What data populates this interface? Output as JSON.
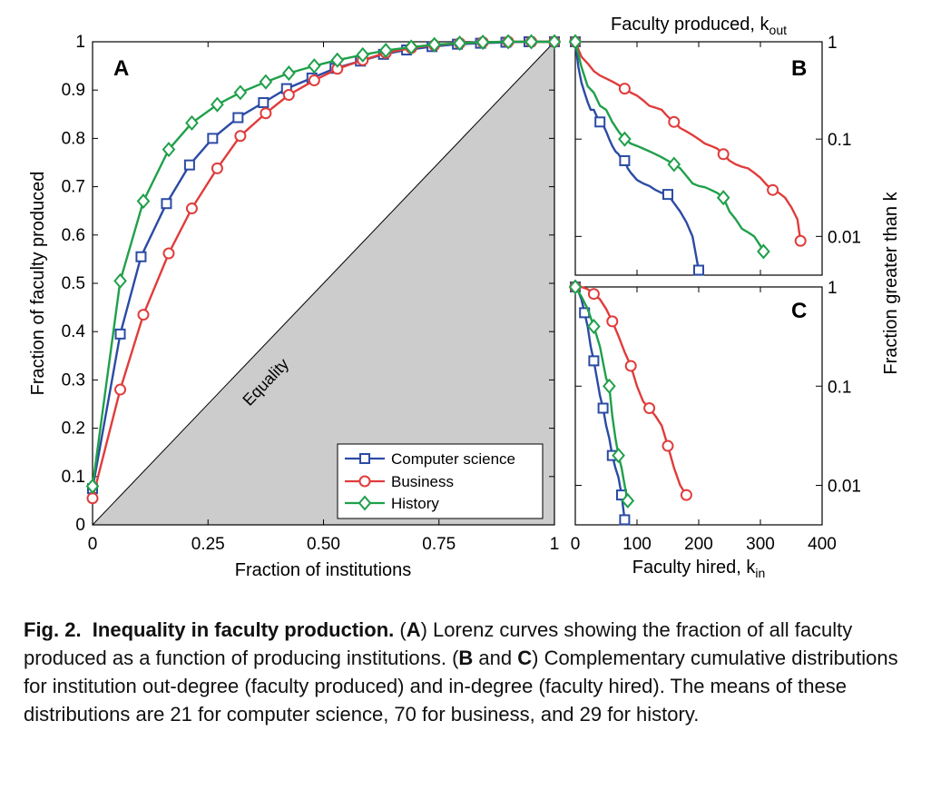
{
  "chart_data": [
    {
      "panel": "A",
      "type": "line",
      "xlabel": "Fraction of institutions",
      "ylabel": "Fraction of faculty produced",
      "xlim": [
        0,
        1
      ],
      "ylim": [
        0,
        1
      ],
      "xticks": [
        "0",
        "0.25",
        "0.50",
        "0.75",
        "1"
      ],
      "yticks": [
        "0",
        "0.1",
        "0.2",
        "0.3",
        "0.4",
        "0.5",
        "0.6",
        "0.7",
        "0.8",
        "0.9",
        "1"
      ],
      "equality_label": "Equality",
      "legend_position": "bottom-right",
      "series": [
        {
          "name": "Computer science",
          "color": "#2b4ba4",
          "marker": "square",
          "x": [
            0,
            0.06,
            0.105,
            0.16,
            0.21,
            0.26,
            0.315,
            0.37,
            0.42,
            0.475,
            0.525,
            0.58,
            0.63,
            0.68,
            0.735,
            0.79,
            0.84,
            0.895,
            0.945,
            1
          ],
          "y": [
            0.075,
            0.395,
            0.555,
            0.665,
            0.745,
            0.8,
            0.843,
            0.874,
            0.903,
            0.925,
            0.945,
            0.96,
            0.974,
            0.983,
            0.99,
            0.995,
            0.997,
            0.999,
            1.0,
            1.0
          ]
        },
        {
          "name": "Business",
          "color": "#e03c3c",
          "marker": "circle",
          "x": [
            0,
            0.06,
            0.11,
            0.165,
            0.215,
            0.27,
            0.32,
            0.375,
            0.425,
            0.48,
            0.53,
            0.585,
            0.635,
            0.69,
            0.74,
            0.795,
            0.845,
            0.9,
            0.95,
            1
          ],
          "y": [
            0.055,
            0.28,
            0.435,
            0.562,
            0.655,
            0.738,
            0.805,
            0.852,
            0.89,
            0.92,
            0.944,
            0.962,
            0.977,
            0.987,
            0.993,
            0.997,
            0.999,
            1.0,
            1.0,
            1.0
          ]
        },
        {
          "name": "History",
          "color": "#1fa04a",
          "marker": "diamond",
          "x": [
            0,
            0.06,
            0.11,
            0.165,
            0.215,
            0.27,
            0.32,
            0.375,
            0.425,
            0.48,
            0.53,
            0.585,
            0.635,
            0.69,
            0.74,
            0.795,
            0.845,
            0.9,
            0.95,
            1
          ],
          "y": [
            0.08,
            0.505,
            0.67,
            0.777,
            0.832,
            0.87,
            0.895,
            0.917,
            0.935,
            0.95,
            0.962,
            0.973,
            0.982,
            0.989,
            0.994,
            0.997,
            0.999,
            1.0,
            1.0,
            1.0
          ]
        }
      ]
    },
    {
      "panel": "B",
      "type": "line",
      "xlabel": "Faculty produced, k",
      "xlabel_subscript": "out",
      "ylabel": "Fraction greater than k",
      "xlim": [
        0,
        400
      ],
      "ylim": [
        0.004,
        1
      ],
      "yscale": "log",
      "yticks": [
        "1",
        "0.1",
        "0.01"
      ],
      "series": [
        {
          "name": "Computer science",
          "color": "#2b4ba4",
          "marker": "square",
          "x": [
            0,
            5,
            10,
            15,
            20,
            25,
            30,
            35,
            40,
            45,
            50,
            55,
            60,
            65,
            70,
            75,
            80,
            85,
            90,
            100,
            110,
            120,
            130,
            140,
            150,
            160,
            170,
            180,
            190,
            200
          ],
          "y": [
            1,
            0.55,
            0.38,
            0.3,
            0.24,
            0.2,
            0.2,
            0.17,
            0.15,
            0.14,
            0.12,
            0.1,
            0.085,
            0.075,
            0.07,
            0.062,
            0.06,
            0.05,
            0.045,
            0.038,
            0.035,
            0.033,
            0.03,
            0.028,
            0.027,
            0.022,
            0.018,
            0.014,
            0.01,
            0.0045
          ]
        },
        {
          "name": "Business",
          "color": "#e03c3c",
          "marker": "circle",
          "x": [
            0,
            10,
            20,
            30,
            40,
            50,
            60,
            70,
            80,
            90,
            100,
            110,
            120,
            130,
            140,
            150,
            160,
            170,
            180,
            190,
            200,
            210,
            220,
            230,
            240,
            250,
            260,
            270,
            280,
            290,
            300,
            310,
            320,
            330,
            340,
            350,
            360,
            365
          ],
          "y": [
            1,
            0.7,
            0.6,
            0.5,
            0.45,
            0.42,
            0.39,
            0.36,
            0.33,
            0.3,
            0.28,
            0.25,
            0.22,
            0.21,
            0.2,
            0.17,
            0.15,
            0.13,
            0.12,
            0.11,
            0.1,
            0.09,
            0.085,
            0.08,
            0.07,
            0.06,
            0.055,
            0.052,
            0.05,
            0.045,
            0.04,
            0.034,
            0.03,
            0.028,
            0.025,
            0.02,
            0.015,
            0.009
          ]
        },
        {
          "name": "History",
          "color": "#1fa04a",
          "marker": "diamond",
          "x": [
            0,
            10,
            20,
            30,
            40,
            50,
            60,
            70,
            80,
            90,
            100,
            110,
            120,
            130,
            140,
            150,
            160,
            170,
            180,
            190,
            200,
            210,
            220,
            230,
            240,
            250,
            260,
            270,
            280,
            290,
            300,
            305
          ],
          "y": [
            1,
            0.55,
            0.35,
            0.3,
            0.22,
            0.2,
            0.15,
            0.12,
            0.1,
            0.09,
            0.085,
            0.08,
            0.075,
            0.07,
            0.065,
            0.06,
            0.055,
            0.05,
            0.042,
            0.035,
            0.033,
            0.032,
            0.03,
            0.028,
            0.025,
            0.018,
            0.015,
            0.012,
            0.011,
            0.01,
            0.008,
            0.007
          ]
        }
      ]
    },
    {
      "panel": "C",
      "type": "line",
      "xlabel": "Faculty hired, k",
      "xlabel_subscript": "in",
      "ylabel": "Fraction greater than k",
      "xlim": [
        0,
        400
      ],
      "ylim": [
        0.004,
        1
      ],
      "yscale": "log",
      "xticks": [
        "0",
        "100",
        "200",
        "300",
        "400"
      ],
      "yticks": [
        "1",
        "0.1",
        "0.01"
      ],
      "series": [
        {
          "name": "Computer science",
          "color": "#2b4ba4",
          "marker": "square",
          "x": [
            0,
            5,
            10,
            15,
            20,
            25,
            30,
            35,
            40,
            45,
            50,
            55,
            60,
            65,
            70,
            75,
            80
          ],
          "y": [
            1,
            0.9,
            0.75,
            0.55,
            0.4,
            0.25,
            0.18,
            0.12,
            0.08,
            0.06,
            0.04,
            0.03,
            0.02,
            0.015,
            0.012,
            0.008,
            0.0045
          ]
        },
        {
          "name": "Business",
          "color": "#e03c3c",
          "marker": "circle",
          "x": [
            0,
            10,
            20,
            30,
            40,
            50,
            60,
            70,
            80,
            90,
            100,
            110,
            120,
            130,
            140,
            150,
            160,
            170,
            180
          ],
          "y": [
            1,
            1,
            0.95,
            0.85,
            0.75,
            0.6,
            0.45,
            0.32,
            0.22,
            0.16,
            0.1,
            0.07,
            0.06,
            0.05,
            0.04,
            0.025,
            0.015,
            0.01,
            0.008
          ]
        },
        {
          "name": "History",
          "color": "#1fa04a",
          "marker": "diamond",
          "x": [
            0,
            10,
            20,
            30,
            40,
            50,
            55,
            60,
            65,
            70,
            75,
            80,
            85
          ],
          "y": [
            1,
            0.8,
            0.6,
            0.4,
            0.25,
            0.12,
            0.1,
            0.05,
            0.03,
            0.02,
            0.015,
            0.01,
            0.007
          ]
        }
      ]
    }
  ],
  "panel_labels": {
    "a": "A",
    "b": "B",
    "c": "C"
  },
  "caption": {
    "label": "Fig. 2.",
    "title": "Inequality in faculty production.",
    "p_open": " (",
    "a": "A",
    "text_a": ") Lorenz curves showing the fraction of all faculty produced as a function of producing institutions. (",
    "b": "B",
    "and": " and ",
    "c": "C",
    "text_bc": ") Complementary cumulative distributions for institution out-degree (faculty produced) and in-degree (faculty hired). The means of these distributions are 21 for computer science, 70 for business, and 29 for history."
  }
}
